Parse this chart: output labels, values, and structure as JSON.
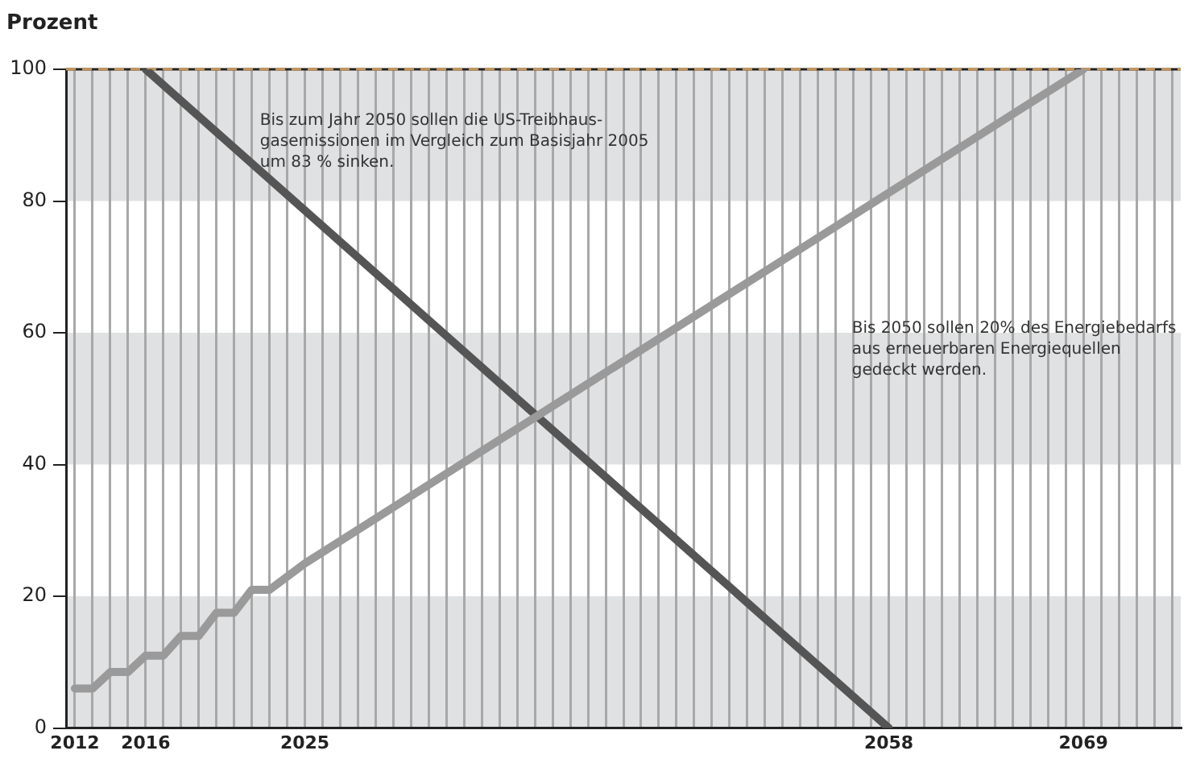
{
  "chart_data": {
    "type": "line",
    "ylabel": "Prozent",
    "xlim": [
      2011.5,
      2074.5
    ],
    "xticks": [
      2012,
      {
        "value": 2013,
        "label": null
      },
      {
        "value": 2014,
        "label": null
      },
      {
        "value": 2015,
        "label": null
      },
      2016,
      {
        "value": 2017,
        "label": null
      },
      {
        "value": 2018,
        "label": null
      },
      {
        "value": 2019,
        "label": null
      },
      {
        "value": 2020,
        "label": null
      },
      {
        "value": 2021,
        "label": null
      },
      {
        "value": 2022,
        "label": null
      },
      {
        "value": 2023,
        "label": null
      },
      {
        "value": 2024,
        "label": null
      },
      2025,
      {
        "value": 2026,
        "label": null
      },
      {
        "value": 2027,
        "label": null
      },
      {
        "value": 2028,
        "label": null
      },
      {
        "value": 2029,
        "label": null
      },
      {
        "value": 2030,
        "label": null
      },
      {
        "value": 2031,
        "label": null
      },
      {
        "value": 2032,
        "label": null
      },
      {
        "value": 2033,
        "label": null
      },
      {
        "value": 2034,
        "label": null
      },
      {
        "value": 2035,
        "label": null
      },
      {
        "value": 2036,
        "label": null
      },
      {
        "value": 2037,
        "label": null
      },
      {
        "value": 2038,
        "label": null
      },
      {
        "value": 2039,
        "label": null
      },
      {
        "value": 2040,
        "label": null
      },
      {
        "value": 2041,
        "label": null
      },
      {
        "value": 2042,
        "label": null
      },
      {
        "value": 2043,
        "label": null
      },
      {
        "value": 2044,
        "label": null
      },
      {
        "value": 2045,
        "label": null
      },
      {
        "value": 2046,
        "label": null
      },
      {
        "value": 2047,
        "label": null
      },
      {
        "value": 2048,
        "label": null
      },
      {
        "value": 2049,
        "label": null
      },
      {
        "value": 2050,
        "label": null
      },
      {
        "value": 2051,
        "label": null
      },
      {
        "value": 2052,
        "label": null
      },
      {
        "value": 2053,
        "label": null
      },
      {
        "value": 2054,
        "label": null
      },
      {
        "value": 2055,
        "label": null
      },
      {
        "value": 2056,
        "label": null
      },
      {
        "value": 2057,
        "label": null
      },
      2058,
      {
        "value": 2059,
        "label": null
      },
      {
        "value": 2060,
        "label": null
      },
      {
        "value": 2061,
        "label": null
      },
      {
        "value": 2062,
        "label": null
      },
      {
        "value": 2063,
        "label": null
      },
      {
        "value": 2064,
        "label": null
      },
      {
        "value": 2065,
        "label": null
      },
      {
        "value": 2066,
        "label": null
      },
      {
        "value": 2067,
        "label": null
      },
      {
        "value": 2068,
        "label": null
      },
      2069,
      {
        "value": 2070,
        "label": null
      },
      {
        "value": 2071,
        "label": null
      },
      {
        "value": 2072,
        "label": null
      },
      {
        "value": 2073,
        "label": null
      },
      {
        "value": 2074,
        "label": null
      }
    ],
    "ylim": [
      0,
      100
    ],
    "yticks": [
      0,
      20,
      40,
      60,
      80,
      100
    ],
    "grid": "x",
    "legend": false,
    "marker": "none",
    "line_style": "solid",
    "series": [
      {
        "color": "#9a9a9a",
        "x": [
          2012,
          2013,
          2014,
          2015,
          2016,
          2017,
          2018,
          2019,
          2020,
          2021,
          2022,
          2023,
          2025,
          2069
        ],
        "values": [
          6,
          6,
          8.5,
          8.5,
          11,
          11,
          14,
          14,
          17.5,
          17.5,
          21,
          21,
          25,
          100
        ]
      },
      {
        "color": "#555555",
        "x": [
          2016,
          2058
        ],
        "values": [
          100,
          0
        ]
      }
    ],
    "bands": [
      {
        "axis": "y",
        "from": 0,
        "to": 20,
        "color": "#e0e1e3"
      },
      {
        "axis": "y",
        "from": 40,
        "to": 60,
        "color": "#e0e1e3"
      },
      {
        "axis": "y",
        "from": 80,
        "to": 100,
        "color": "#e0e1e3"
      }
    ],
    "ref_lines": [
      {
        "axis": "y",
        "value": 100,
        "color": "#c8965a",
        "line_style": "dashed"
      }
    ],
    "annotations": [
      "Bis zum Jahr 2050 sollen die US-Treibhaus-\ngasemissionen im Vergleich zum Basisjahr 2005\num 83 % sinken.",
      "Bis 2050 sollen 20% des Energiebedarfs\naus erneuerbaren Energiequellen\ngedeckt werden."
    ]
  }
}
